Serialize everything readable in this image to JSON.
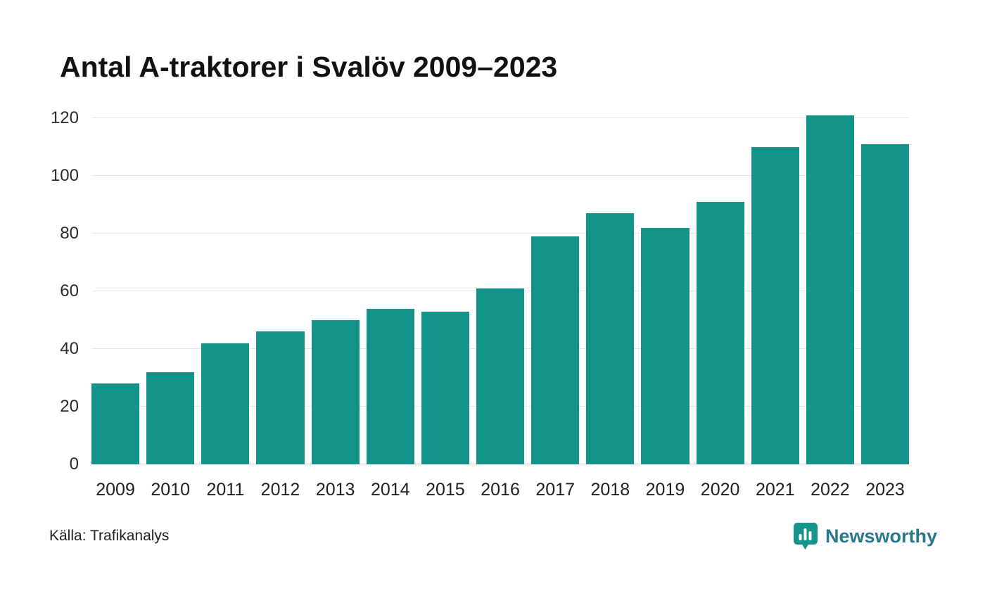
{
  "title": "Antal A-traktorer i Svalöv 2009–2023",
  "source": "Källa: Trafikanalys",
  "brand": {
    "name": "Newsworthy",
    "icon": "newsworthy-pin-barchart-icon",
    "icon_color": "#15948C",
    "text_color": "#27798A"
  },
  "colors": {
    "bar": "#13948B",
    "gridline": "#e7e7e7"
  },
  "chart_data": {
    "type": "bar",
    "title": "Antal A-traktorer i Svalöv 2009–2023",
    "categories": [
      "2009",
      "2010",
      "2011",
      "2012",
      "2013",
      "2014",
      "2015",
      "2016",
      "2017",
      "2018",
      "2019",
      "2020",
      "2021",
      "2022",
      "2023"
    ],
    "values": [
      28,
      32,
      42,
      46,
      50,
      54,
      53,
      61,
      79,
      87,
      82,
      91,
      110,
      121,
      111
    ],
    "xlabel": "",
    "ylabel": "",
    "ylim": [
      0,
      120
    ],
    "yticks": [
      0,
      20,
      40,
      60,
      80,
      100,
      120
    ],
    "grid": "horizontal",
    "legend": "none"
  }
}
